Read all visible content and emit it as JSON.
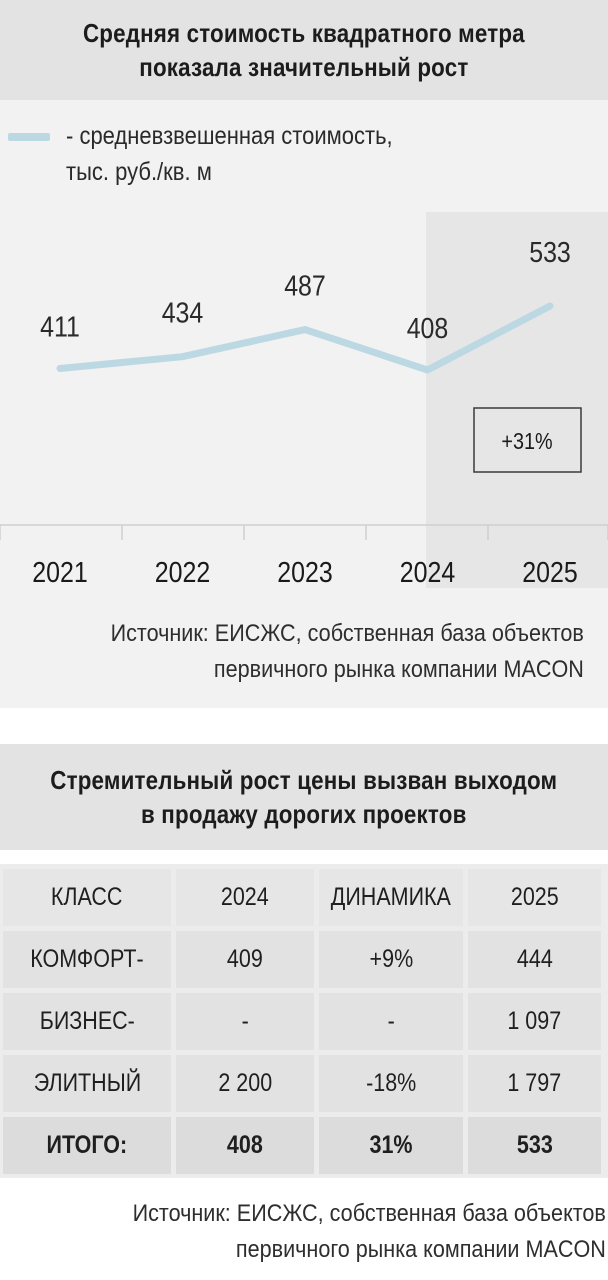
{
  "section1": {
    "title_line1": "Средняя стоимость квадратного метра",
    "title_line2": "показала значительный рост",
    "legend_line1": "- средневзвешенная стоимость,",
    "legend_line2": "тыс. руб./кв. м",
    "badge": "+31%",
    "source_line1": "Источник: ЕИСЖС, собственная база объектов",
    "source_line2": "первичного рынка компании MACON"
  },
  "chart_data": {
    "type": "line",
    "categories": [
      "2021",
      "2022",
      "2023",
      "2024",
      "2025"
    ],
    "series": [
      {
        "name": "- средневзвешенная стоимость, тыс. руб./кв. м",
        "values": [
          411,
          434,
          487,
          408,
          533
        ]
      }
    ],
    "data_labels": [
      "411",
      "434",
      "487",
      "408",
      "533"
    ],
    "highlighted_category": "2025",
    "annotation": "+31%",
    "line_color": "#bcd8e3",
    "grid": false
  },
  "section2": {
    "title_line1": "Стремительный рост цены вызван выходом",
    "title_line2": "в продажу дорогих проектов",
    "table": {
      "headers": [
        "КЛАСС",
        "2024",
        "ДИНАМИКА",
        "2025"
      ],
      "rows": [
        [
          "КОМФОРТ-",
          "409",
          "+9%",
          "444"
        ],
        [
          "БИЗНЕС-",
          "-",
          "-",
          "1 097"
        ],
        [
          "ЭЛИТНЫЙ",
          "2 200",
          "-18%",
          "1 797"
        ]
      ],
      "total": [
        "ИТОГО:",
        "408",
        "31%",
        "533"
      ]
    },
    "source_line1": "Источник: ЕИСЖС, собственная база объектов",
    "source_line2": "первичного рынка компании MACON"
  }
}
